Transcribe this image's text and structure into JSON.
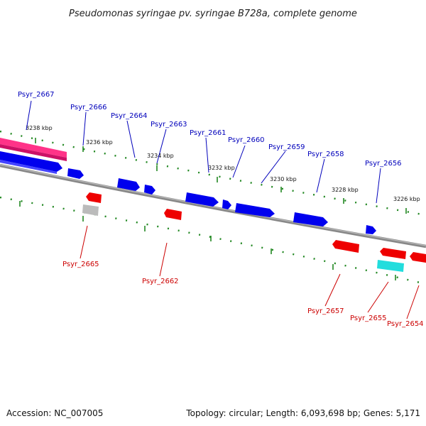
{
  "title": "Pseudomonas syringae pv. syringae B728a, complete genome",
  "footer": {
    "accession": "Accession: NC_007005",
    "summary": "Topology: circular; Length: 6,093,698 bp; Genes: 5,171"
  },
  "colors": {
    "forward_gene": "#0000ee",
    "reverse_gene": "#ee0000",
    "forward_label": "#0000bb",
    "reverse_label": "#cc0000",
    "highlight_gene": "#ff3388",
    "pseudo_gene": "#bbbbbb",
    "rna_gene": "#22dddd",
    "backbone": "#888888",
    "ruler": "#228822"
  },
  "ruler_labels": [
    "3238 kbp",
    "3236 kbp",
    "3234 kbp",
    "3232 kbp",
    "3230 kbp",
    "3228 kbp",
    "3226 kbp"
  ],
  "forward_genes": [
    "Psyr_2667",
    "Psyr_2666",
    "Psyr_2664",
    "Psyr_2663",
    "Psyr_2661",
    "Psyr_2660",
    "Psyr_2659",
    "Psyr_2658",
    "Psyr_2656"
  ],
  "reverse_genes": [
    "Psyr_2665",
    "Psyr_2662",
    "Psyr_2657",
    "Psyr_2655",
    "Psyr_2654"
  ]
}
